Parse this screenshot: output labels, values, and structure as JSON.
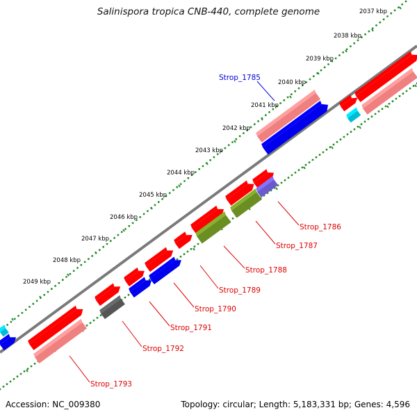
{
  "title": "Salinispora tropica CNB-440, complete genome",
  "footer": {
    "accession": "Accession: NC_009380",
    "summary": "Topology: circular; Length: 5,183,331 bp; Genes: 4,596"
  },
  "ticks": [
    "2037 kbp",
    "2038 kbp",
    "2039 kbp",
    "2040 kbp",
    "2041 kbp",
    "2042 kbp",
    "2043 kbp",
    "2044 kbp",
    "2045 kbp",
    "2046 kbp",
    "2047 kbp",
    "2048 kbp",
    "2049 kbp"
  ],
  "gene_labels": [
    {
      "text": "Strop_1785",
      "color": "#0000dd"
    },
    {
      "text": "Strop_1786",
      "color": "#dd0000"
    },
    {
      "text": "Strop_1787",
      "color": "#dd0000"
    },
    {
      "text": "Strop_1788",
      "color": "#dd0000"
    },
    {
      "text": "Strop_1789",
      "color": "#dd0000"
    },
    {
      "text": "Strop_1790",
      "color": "#dd0000"
    },
    {
      "text": "Strop_1791",
      "color": "#dd0000"
    },
    {
      "text": "Strop_1792",
      "color": "#dd0000"
    },
    {
      "text": "Strop_1793",
      "color": "#dd0000"
    }
  ],
  "colors": {
    "cds_forward": "#ff0000",
    "rna_pink": "#f08080",
    "cds_reverse": "#0000ee",
    "olive": "#6b8e23",
    "slate": "#6a5acd",
    "gray_feature": "#555555",
    "cyan": "#00bcd4",
    "backbone": "#808080",
    "dots": "#228b22"
  }
}
